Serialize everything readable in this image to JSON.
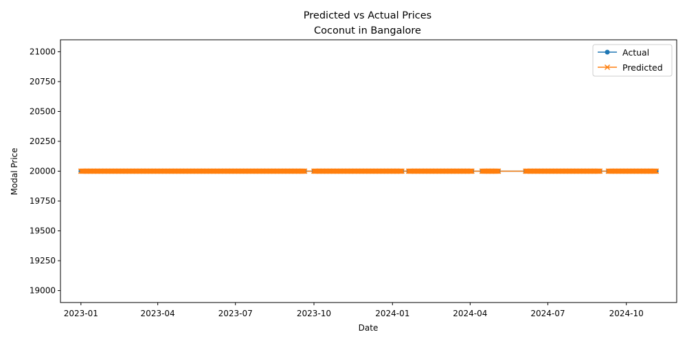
{
  "chart_data": {
    "type": "line",
    "title": "Predicted vs Actual Prices",
    "subtitle": "Coconut in Bangalore",
    "xlabel": "Date",
    "ylabel": "Modal Price",
    "x_tick_labels": [
      "2023-01",
      "2023-04",
      "2023-07",
      "2023-10",
      "2024-01",
      "2024-04",
      "2024-07",
      "2024-10"
    ],
    "x_ticks": [
      "2023-01-01",
      "2023-04-01",
      "2023-07-01",
      "2023-10-01",
      "2024-01-01",
      "2024-04-01",
      "2024-07-01",
      "2024-10-01"
    ],
    "y_ticks": [
      19000,
      19250,
      19500,
      19750,
      20000,
      20250,
      20500,
      20750,
      21000
    ],
    "y_tick_labels": [
      "19000",
      "19250",
      "19500",
      "19750",
      "20000",
      "20250",
      "20500",
      "20750",
      "21000"
    ],
    "xlim": [
      "2022-12-08",
      "2024-11-29"
    ],
    "ylim": [
      18900,
      21100
    ],
    "grid": false,
    "legend_position": "top-right",
    "date_ranges": [
      [
        "2023-01-01",
        "2023-09-20"
      ],
      [
        "2023-10-01",
        "2024-01-12"
      ],
      [
        "2024-01-20",
        "2024-04-03"
      ],
      [
        "2024-04-15",
        "2024-05-04"
      ],
      [
        "2024-06-05",
        "2024-08-31"
      ],
      [
        "2024-09-10",
        "2024-11-05"
      ]
    ],
    "series": [
      {
        "name": "Actual",
        "value": 20000,
        "color": "#1f77b4",
        "marker": "circle"
      },
      {
        "name": "Predicted",
        "value": 20000,
        "color": "#ff7f0e",
        "marker": "x"
      }
    ]
  }
}
